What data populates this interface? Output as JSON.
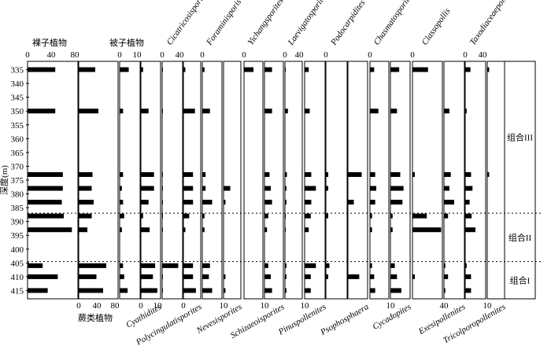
{
  "chart_data": {
    "type": "bar",
    "y_axis": {
      "label": "深度(m)",
      "range": [
        332,
        418
      ],
      "ticks": [
        335,
        340,
        345,
        350,
        355,
        360,
        365,
        370,
        375,
        380,
        385,
        390,
        395,
        400,
        405,
        410,
        415
      ],
      "tick_labels": [
        "335",
        "340",
        "345",
        "350",
        "355",
        "360",
        "365",
        "370",
        "375",
        "380",
        "385",
        "390",
        "395",
        "400",
        "405",
        "410",
        "415"
      ]
    },
    "depths": [
      335,
      350,
      373,
      378,
      383,
      388,
      393,
      406,
      410,
      415
    ],
    "panels": [
      {
        "name": "裸子植物",
        "italic": false,
        "label_pos": "top",
        "ticks": [
          "0",
          "40",
          "80"
        ],
        "max": 100,
        "values": [
          55,
          55,
          70,
          70,
          68,
          72,
          88,
          30,
          60,
          40
        ]
      },
      {
        "name": "蕨类植物",
        "italic": false,
        "label_pos": "bottom",
        "ticks": [
          "0",
          "40",
          "80"
        ],
        "max": 100,
        "values": [
          42,
          50,
          35,
          33,
          38,
          33,
          22,
          70,
          45,
          62
        ]
      },
      {
        "name": "被子植物",
        "italic": false,
        "label_pos": "top",
        "ticks": [
          "0",
          "10"
        ],
        "max": 18,
        "values": [
          8,
          3,
          3,
          2,
          3,
          4,
          2,
          3,
          4,
          7
        ]
      },
      {
        "name": "Cyathidites",
        "italic": true,
        "label_pos": "bottom",
        "ticks": [
          "0",
          "10"
        ],
        "max": 18,
        "values": [
          2,
          7,
          12,
          12,
          7,
          2,
          8,
          13,
          11,
          15
        ]
      },
      {
        "name": "Cicatricosisporites",
        "italic": true,
        "label_pos": "top",
        "ticks": [
          "0",
          "40"
        ],
        "max": 70,
        "values": [
          2,
          2,
          2,
          2,
          2,
          2,
          2,
          55,
          2,
          2
        ]
      },
      {
        "name": "Polycingulatisporites",
        "italic": true,
        "label_pos": "bottom",
        "ticks": [
          "0"
        ],
        "max": 18,
        "values": [
          2,
          12,
          10,
          10,
          10,
          6,
          2,
          10,
          10,
          13
        ]
      },
      {
        "name": "Foraminisporis",
        "italic": true,
        "label_pos": "top",
        "ticks": [
          "0"
        ],
        "max": 18,
        "values": [
          2,
          7,
          3,
          3,
          9,
          2,
          2,
          7,
          6,
          9
        ]
      },
      {
        "name": "Nevesisporites",
        "italic": true,
        "label_pos": "bottom",
        "ticks": [
          "10"
        ],
        "max": 18,
        "values": [
          0,
          0,
          0,
          7,
          2,
          0,
          0,
          0,
          2,
          2
        ]
      },
      {
        "name": "Yichangsporites",
        "italic": true,
        "label_pos": "top",
        "ticks": [
          "0"
        ],
        "max": 30,
        "values": [
          15,
          0,
          0,
          0,
          0,
          0,
          0,
          0,
          0,
          0
        ]
      },
      {
        "name": "Schizaeoisporites",
        "italic": true,
        "label_pos": "bottom",
        "ticks": [
          "10"
        ],
        "max": 30,
        "values": [
          12,
          12,
          8,
          10,
          12,
          6,
          4,
          6,
          10,
          12
        ]
      },
      {
        "name": "Laevigatosporites",
        "italic": true,
        "label_pos": "top",
        "ticks": [
          "0",
          "40"
        ],
        "max": 70,
        "values": [
          3,
          12,
          8,
          6,
          6,
          3,
          2,
          6,
          6,
          6
        ]
      },
      {
        "name": "Pinuspollenites",
        "italic": true,
        "label_pos": "bottom",
        "ticks": [
          "10"
        ],
        "max": 40,
        "values": [
          8,
          10,
          13,
          22,
          13,
          12,
          8,
          22,
          12,
          12
        ]
      },
      {
        "name": "Podocarpidites",
        "italic": true,
        "label_pos": "top",
        "ticks": [
          "0"
        ],
        "max": 18,
        "values": [
          0,
          0,
          2,
          2,
          0,
          2,
          0,
          3,
          2,
          0
        ]
      },
      {
        "name": "Psophosphaera",
        "italic": true,
        "label_pos": "bottom",
        "ticks": [],
        "max": 40,
        "values": [
          0,
          0,
          28,
          0,
          12,
          0,
          0,
          0,
          23,
          0
        ]
      },
      {
        "name": "Chasmatosporites",
        "italic": true,
        "label_pos": "top",
        "ticks": [
          "0"
        ],
        "max": 18,
        "values": [
          4,
          8,
          5,
          6,
          5,
          2,
          2,
          2,
          4,
          5
        ]
      },
      {
        "name": "Cycadopites",
        "italic": true,
        "label_pos": "bottom",
        "ticks": [
          "10"
        ],
        "max": 18,
        "values": [
          8,
          6,
          9,
          12,
          11,
          2,
          2,
          4,
          6,
          10
        ]
      },
      {
        "name": "Classopollis",
        "italic": true,
        "label_pos": "top",
        "ticks": [
          "0"
        ],
        "max": 25,
        "values": [
          13,
          0,
          2,
          0,
          0,
          12,
          24,
          0,
          2,
          0
        ]
      },
      {
        "name": "Exesipollenites",
        "italic": true,
        "label_pos": "bottom",
        "ticks": [
          "40"
        ],
        "max": 30,
        "values": [
          0,
          8,
          10,
          8,
          15,
          6,
          0,
          2,
          6,
          2
        ]
      },
      {
        "name": "Taxodiaceaepollenites hiatus",
        "italic": true,
        "label_pos": "top",
        "ticks": [
          "0",
          "40"
        ],
        "max": 70,
        "values": [
          18,
          5,
          20,
          25,
          15,
          22,
          35,
          5,
          20,
          20
        ]
      },
      {
        "name": "Tricolporopollenites",
        "italic": true,
        "label_pos": "bottom",
        "ticks": [
          "10"
        ],
        "max": 18,
        "values": [
          2,
          0,
          2,
          0,
          0,
          0,
          0,
          0,
          0,
          0
        ]
      }
    ],
    "zones": [
      {
        "name": "组合III",
        "from": 332,
        "to": 387
      },
      {
        "name": "组合II",
        "from": 387,
        "to": 404.5
      },
      {
        "name": "组合I",
        "from": 404.5,
        "to": 418
      }
    ],
    "zone_boundaries": [
      387,
      404.5
    ]
  }
}
